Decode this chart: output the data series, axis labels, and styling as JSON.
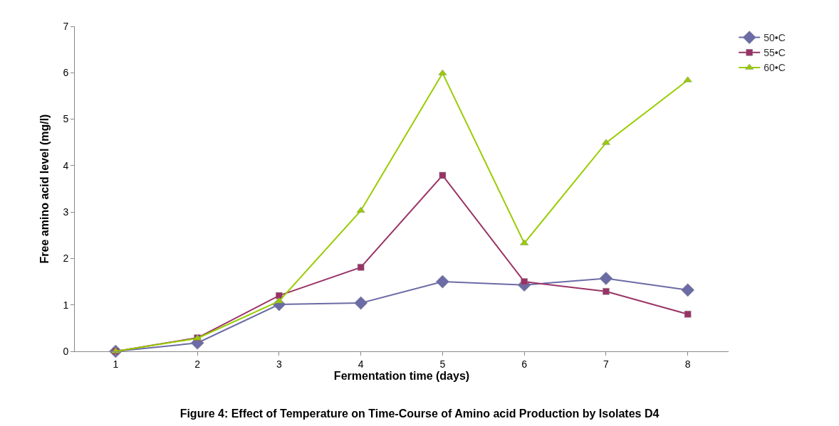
{
  "chart_data": {
    "type": "line",
    "title": "Figure 4: Effect of Temperature on Time-Course of Amino acid Production by Isolates D4",
    "xlabel": "Fermentation time (days)",
    "ylabel": "Free amino acid level (mg/l)",
    "categories": [
      "1",
      "2",
      "3",
      "4",
      "5",
      "6",
      "7",
      "8"
    ],
    "ylim": [
      0,
      7
    ],
    "yticks": [
      0,
      1,
      2,
      3,
      4,
      5,
      6,
      7
    ],
    "legend": "top right",
    "series": [
      {
        "name": "50•C",
        "color": "#6b6ba6",
        "marker": "diamond",
        "values": [
          0,
          0.18,
          1.01,
          1.04,
          1.5,
          1.43,
          1.57,
          1.32
        ]
      },
      {
        "name": "55•C",
        "color": "#993366",
        "marker": "square",
        "values": [
          0,
          0.29,
          1.2,
          1.81,
          3.79,
          1.5,
          1.29,
          0.8
        ]
      },
      {
        "name": "60•C",
        "color": "#99cc00",
        "marker": "triangle",
        "values": [
          0,
          0.28,
          1.08,
          3.03,
          5.99,
          2.33,
          4.49,
          5.84
        ]
      }
    ]
  }
}
